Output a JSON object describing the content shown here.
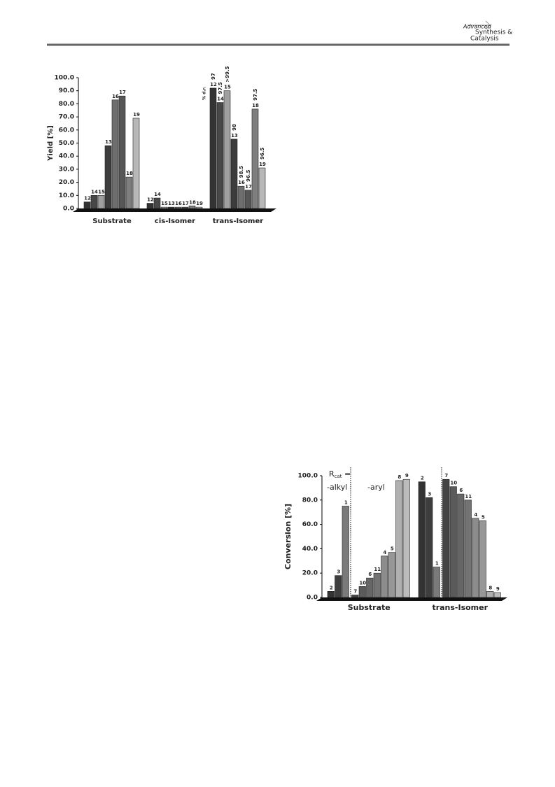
{
  "header": {
    "journal_lines": [
      "Advanced",
      "Synthesis &",
      "Catalysis"
    ]
  },
  "chart_data": [
    {
      "type": "bar",
      "y_label": "Yield [%]",
      "categories": [
        "Substrate",
        "cis-Isomer",
        "trans-Isomer"
      ],
      "ylim": [
        0,
        100
      ],
      "yticks": [
        {
          "value": 0,
          "label": "0.0"
        },
        {
          "value": 10,
          "label": "10.0"
        },
        {
          "value": 20,
          "label": "20.0"
        },
        {
          "value": 30,
          "label": "30.0"
        },
        {
          "value": 40,
          "label": "40.0"
        },
        {
          "value": 50,
          "label": "50.0"
        },
        {
          "value": 60,
          "label": "60.0"
        },
        {
          "value": 70,
          "label": "70.0"
        },
        {
          "value": 80,
          "label": "80.0"
        },
        {
          "value": 90,
          "label": "90.0"
        },
        {
          "value": 100,
          "label": "100.0"
        }
      ],
      "dr_title": "% d.r.",
      "dr_labels": [
        "97",
        "97.5",
        ">99.5",
        "98",
        "98.5",
        "96.5",
        "97.5",
        "96.5"
      ],
      "series": [
        {
          "name": "12",
          "color": "#333333",
          "values": [
            5,
            4,
            92
          ]
        },
        {
          "name": "14",
          "color": "#484848",
          "values": [
            10,
            8,
            81
          ]
        },
        {
          "name": "15",
          "color": "#a0a0a0",
          "values": [
            10,
            1,
            90
          ]
        },
        {
          "name": "13",
          "color": "#3c3c3c",
          "values": [
            48,
            1,
            53
          ]
        },
        {
          "name": "16",
          "color": "#6e6e6e",
          "values": [
            83,
            1,
            17
          ]
        },
        {
          "name": "17",
          "color": "#565656",
          "values": [
            86,
            1,
            14
          ]
        },
        {
          "name": "18",
          "color": "#7e7e7e",
          "values": [
            24,
            2,
            76
          ]
        },
        {
          "name": "19",
          "color": "#b8b8b8",
          "values": [
            69,
            1,
            31
          ]
        }
      ]
    },
    {
      "type": "bar",
      "y_label": "Conversion [%]",
      "categories": [
        "Substrate",
        "trans-Isomer"
      ],
      "ylim": [
        0,
        100
      ],
      "yticks": [
        {
          "value": 0,
          "label": "0.0"
        },
        {
          "value": 20,
          "label": "20.0"
        },
        {
          "value": 40,
          "label": "40.0"
        },
        {
          "value": 60,
          "label": "60.0"
        },
        {
          "value": 80,
          "label": "80.0"
        },
        {
          "value": 100,
          "label": "100.0"
        }
      ],
      "rcat": {
        "base": "R",
        "sub": "cat",
        "suffix": " ="
      },
      "group_labels": [
        "-alkyl",
        "-aryl"
      ],
      "series": [
        {
          "name": "2",
          "color": "#333333",
          "values": [
            5,
            95
          ]
        },
        {
          "name": "3",
          "color": "#3e3e3e",
          "values": [
            18,
            82
          ]
        },
        {
          "name": "1",
          "color": "#7a7a7a",
          "values": [
            75,
            25
          ]
        },
        {
          "name": "7",
          "color": "#444444",
          "values": [
            2,
            97
          ]
        },
        {
          "name": "10",
          "color": "#5a5a5a",
          "values": [
            9,
            91
          ]
        },
        {
          "name": "6",
          "color": "#666666",
          "values": [
            16,
            85
          ]
        },
        {
          "name": "11",
          "color": "#737373",
          "values": [
            20,
            80
          ]
        },
        {
          "name": "4",
          "color": "#8c8c8c",
          "values": [
            34,
            65
          ]
        },
        {
          "name": "5",
          "color": "#979797",
          "values": [
            37,
            63
          ]
        },
        {
          "name": "8",
          "color": "#b0b0b0",
          "values": [
            96,
            5
          ]
        },
        {
          "name": "9",
          "color": "#bcbcbc",
          "values": [
            97,
            4
          ]
        }
      ]
    }
  ]
}
